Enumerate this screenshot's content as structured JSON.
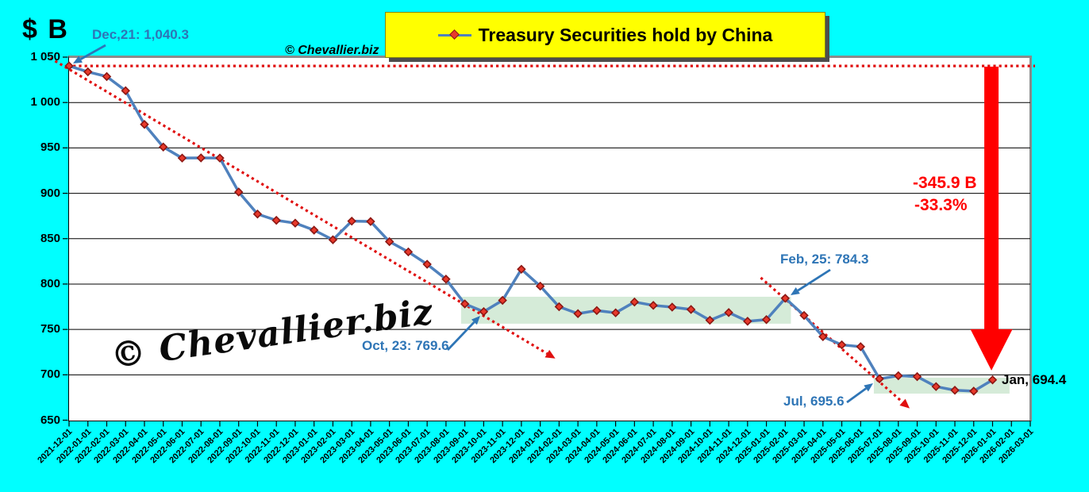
{
  "page": {
    "background": "#00FFFF",
    "axis_title": "$ B"
  },
  "watermarks": {
    "top": "© Chevallier.biz",
    "big": "© Chevallier.biz"
  },
  "legend": {
    "label": "Treasury Securities hold by China",
    "background": "#FFFF00"
  },
  "annotations": {
    "dec21": "Dec,21: 1,040.3",
    "oct23": "Oct, 23: 769.6",
    "feb25": "Feb, 25: 784.3",
    "jul25": "Jul, 695.6",
    "jan26": "Jan, 694.4",
    "delta_abs": "-345.9 B",
    "delta_pct": "-33.3%"
  },
  "chart_data": {
    "type": "line",
    "title": "Treasury Securities hold by China",
    "xlabel": "",
    "ylabel": "$ B",
    "ylim": [
      650,
      1050
    ],
    "ytick_step": 50,
    "grid": true,
    "legend_position": "top-center",
    "yticks": [
      650,
      700,
      750,
      800,
      850,
      900,
      950,
      1000,
      1050
    ],
    "categories": [
      "2021-12-01",
      "2022-01-01",
      "2022-02-01",
      "2022-03-01",
      "2022-04-01",
      "2022-05-01",
      "2022-06-01",
      "2022-07-01",
      "2022-08-01",
      "2022-09-01",
      "2022-10-01",
      "2022-11-01",
      "2022-12-01",
      "2023-01-01",
      "2023-02-01",
      "2023-03-01",
      "2023-04-01",
      "2023-05-01",
      "2023-06-01",
      "2023-07-01",
      "2023-08-01",
      "2023-09-01",
      "2023-10-01",
      "2023-11-01",
      "2023-12-01",
      "2024-01-01",
      "2024-02-01",
      "2024-03-01",
      "2024-04-01",
      "2024-05-01",
      "2024-06-01",
      "2024-07-01",
      "2024-08-01",
      "2024-09-01",
      "2024-10-01",
      "2024-11-01",
      "2024-12-01",
      "2025-01-01",
      "2025-02-01",
      "2025-03-01",
      "2025-04-01",
      "2025-05-01",
      "2025-06-01",
      "2025-07-01",
      "2025-08-01",
      "2025-09-01",
      "2025-10-01",
      "2025-11-01",
      "2025-12-01",
      "2026-01-01",
      "2026-02-01",
      "2026-03-01"
    ],
    "series": [
      {
        "name": "Treasury Securities hold by China",
        "color": "#4F81BD",
        "marker": "diamond",
        "marker_fill": "#E8392B",
        "marker_stroke": "#8C1713",
        "values": [
          1040.3,
          1033.8,
          1028.6,
          1013.0,
          975.9,
          951.0,
          938.8,
          939.0,
          938.8,
          901.4,
          877.1,
          870.2,
          867.1,
          859.4,
          848.8,
          869.3,
          868.9,
          846.7,
          835.4,
          821.8,
          805.4,
          778.1,
          769.6,
          782.0,
          816.3,
          797.7,
          775.0,
          767.4,
          770.8,
          768.3,
          780.2,
          776.5,
          774.6,
          772.0,
          760.1,
          768.6,
          759.0,
          760.8,
          784.3,
          765.4,
          742.0,
          733.0,
          731.0,
          695.6,
          699.0,
          698.0,
          687.0,
          683.0,
          682.0,
          694.4,
          null,
          null
        ]
      }
    ],
    "reference_line": {
      "value": 1040.3,
      "style": "dotted",
      "color": "#E01010"
    },
    "trendlines": [
      {
        "from_month": -1.0,
        "from_value": 1049.0,
        "to_month": 25.8,
        "to_value": 718.0,
        "color": "#E01010",
        "style": "dotted-arrow"
      },
      {
        "from_month": 36.7,
        "from_value": 807.0,
        "to_month": 44.6,
        "to_value": 663.0,
        "color": "#E01010",
        "style": "dotted-arrow"
      }
    ],
    "highlight_regions": [
      {
        "from_month": 20.8,
        "to_month": 38.3,
        "value_top": 786.0,
        "value_bottom": 756.3,
        "color": "#D5EBD8"
      },
      {
        "from_month": 42.7,
        "to_month": 49.9,
        "value_top": 696.8,
        "value_bottom": 679.3,
        "color": "#D5EBD8"
      }
    ],
    "drop_arrow": {
      "month": 48.94,
      "from_value": 1039.5,
      "shaft_end_value": 750.2,
      "tip_value": 704.7,
      "color": "#FF0000",
      "label_abs": "-345.9 B",
      "label_pct": "-33.3%"
    }
  }
}
